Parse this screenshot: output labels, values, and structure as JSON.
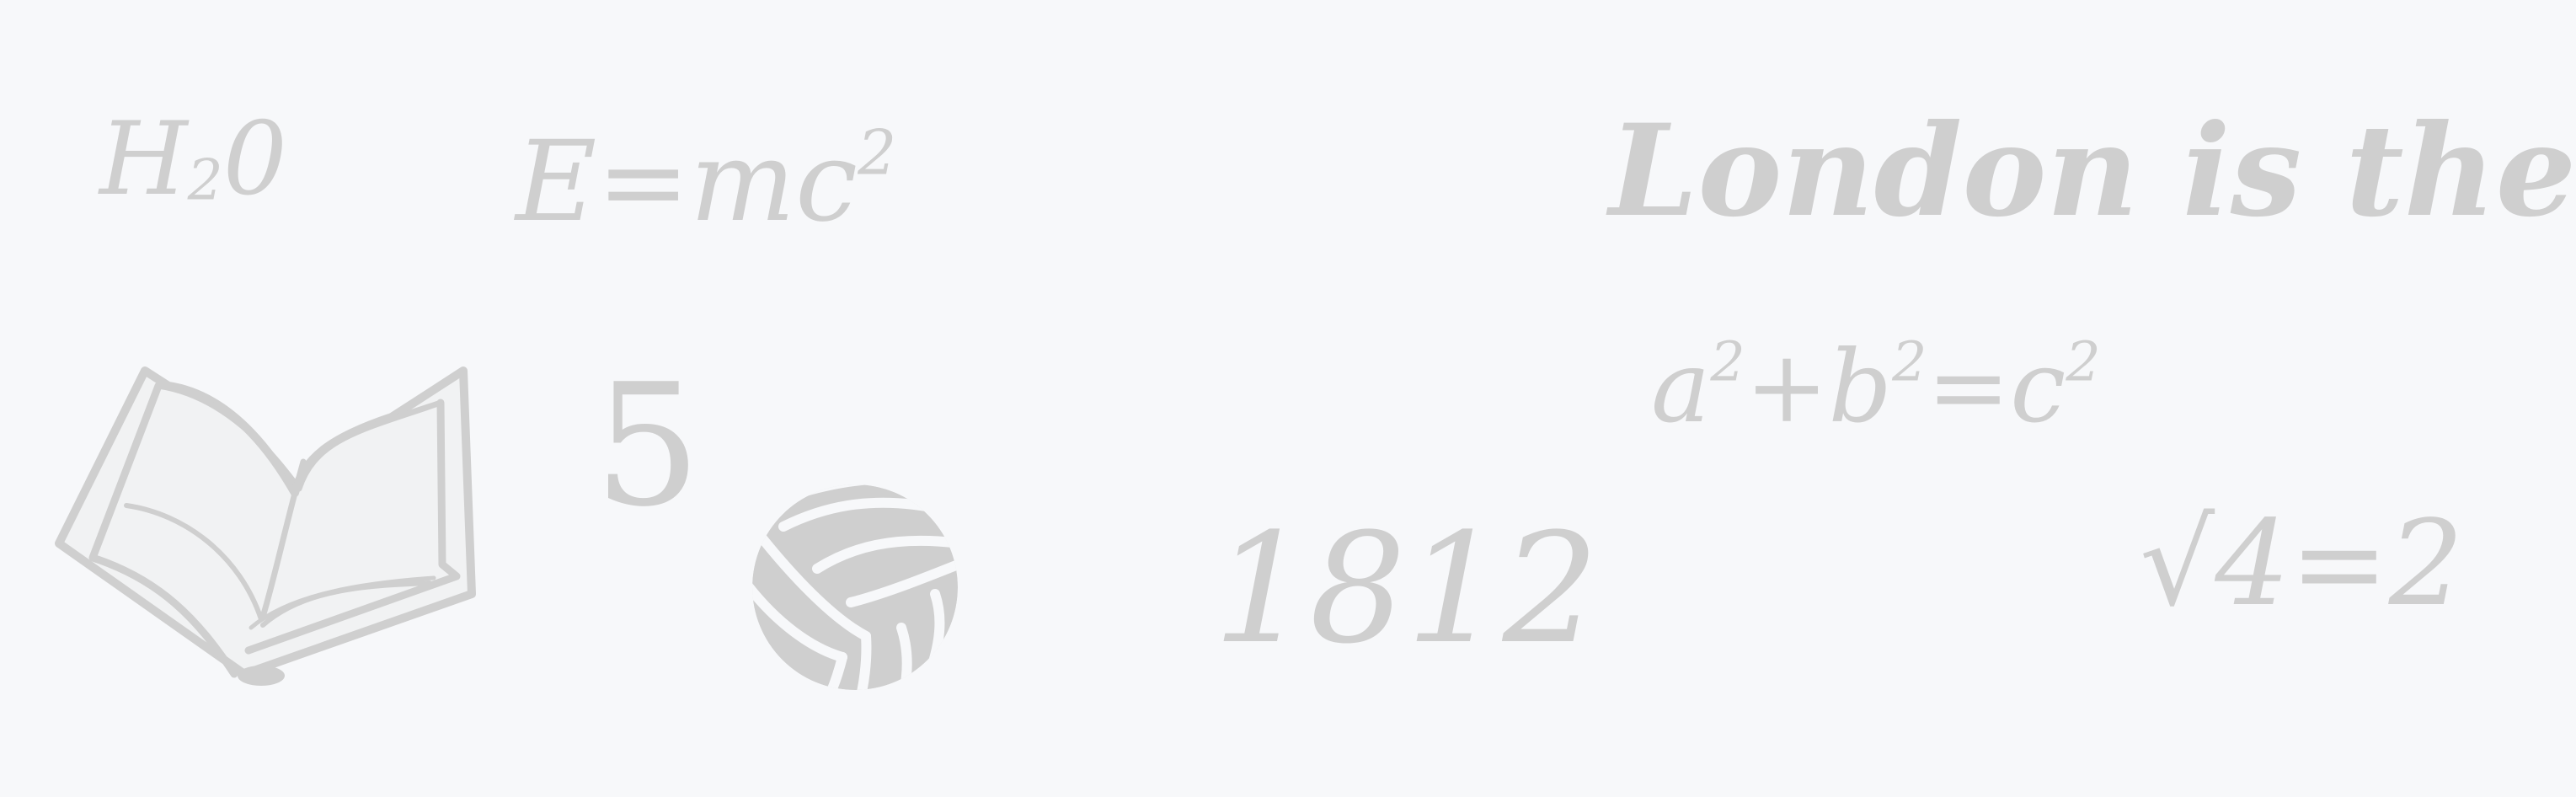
{
  "background_color": "#f7f8fa",
  "doodle_color": "#cfcfcf",
  "scribbles": {
    "water": {
      "base": "H",
      "sub": "2",
      "tail": "0"
    },
    "einstein": {
      "base": "E=mc",
      "sup": "2"
    },
    "sentence": "London is the",
    "digit": "5",
    "pythagoras": {
      "a": "a",
      "a_exp": "2",
      "plus": "+b",
      "b_exp": "2",
      "eq": "=c",
      "c_exp": "2"
    },
    "year": "1812",
    "root": {
      "radical": "√",
      "value": "4",
      "result": "=2"
    }
  },
  "icons": {
    "book": "open-book-icon",
    "ball": "volleyball-icon"
  }
}
